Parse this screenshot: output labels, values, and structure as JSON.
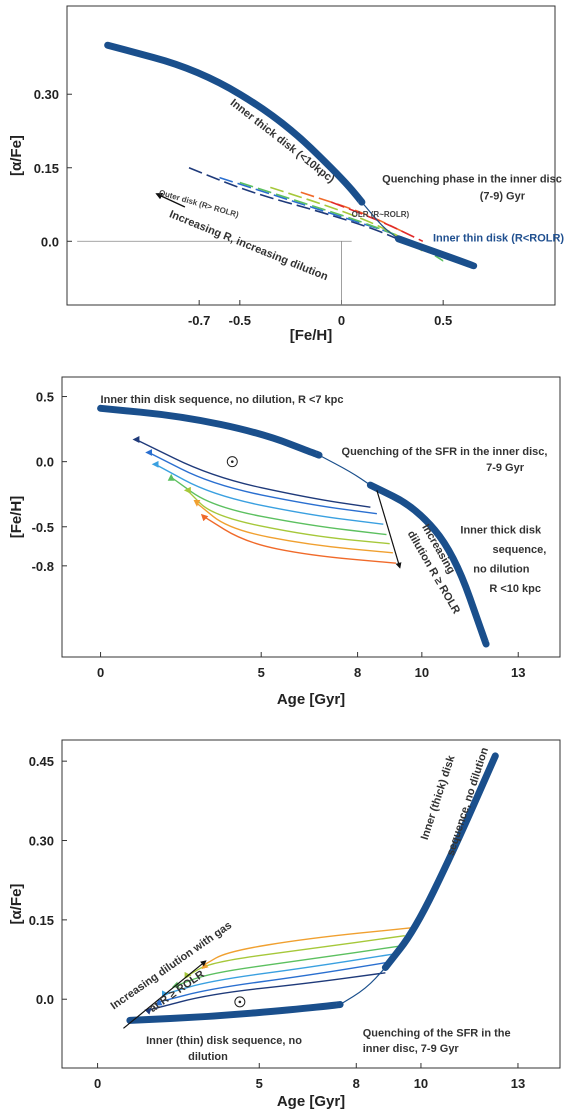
{
  "colors": {
    "thick": "#1a4f8c",
    "rainbow": [
      "#1f3a7a",
      "#2a6fd0",
      "#3aa0e0",
      "#5cc060",
      "#a6c83a",
      "#f0a030",
      "#f06a2a",
      "#e02a2a"
    ]
  },
  "chart_data": [
    {
      "type": "line",
      "xlabel": "[Fe/H]",
      "ylabel": "[α/Fe]",
      "x_ticks": [
        "-0.7",
        "-0.5",
        "0",
        "0.5"
      ],
      "y_ticks": [
        "0.30",
        "0.15",
        "0.0"
      ],
      "xlim": [
        -1.35,
        1.05
      ],
      "ylim": [
        -0.13,
        0.48
      ],
      "series": [
        {
          "name": "Inner thick disk (<10kpc)",
          "style": "thick",
          "x": [
            -1.15,
            -0.7,
            -0.3,
            0.0,
            0.1
          ],
          "y": [
            0.4,
            0.35,
            0.25,
            0.13,
            0.08
          ]
        },
        {
          "name": "Quenching phase in the inner disc (7-9) Gyr",
          "style": "thin",
          "x": [
            0.1,
            0.2,
            0.28
          ],
          "y": [
            0.08,
            0.03,
            0.005
          ]
        },
        {
          "name": "Inner thin disk (R<ROLR)",
          "style": "thick",
          "x": [
            0.28,
            0.45,
            0.65
          ],
          "y": [
            0.005,
            -0.02,
            -0.05
          ]
        }
      ],
      "rainbow_tracks": [
        {
          "x": [
            -0.75,
            -0.45,
            -0.1,
            0.2,
            0.4,
            0.65
          ],
          "y": [
            0.15,
            0.1,
            0.06,
            0.02,
            -0.02,
            -0.05
          ]
        },
        {
          "x": [
            -0.6,
            -0.3,
            0.0,
            0.3,
            0.55
          ],
          "y": [
            0.13,
            0.09,
            0.05,
            0.01,
            -0.04
          ]
        },
        {
          "x": [
            -0.5,
            -0.2,
            0.1,
            0.35,
            0.5
          ],
          "y": [
            0.12,
            0.08,
            0.04,
            0.0,
            -0.04
          ]
        },
        {
          "x": [
            -0.35,
            -0.05,
            0.2,
            0.4
          ],
          "y": [
            0.11,
            0.07,
            0.03,
            -0.02
          ]
        },
        {
          "x": [
            -0.2,
            0.1,
            0.3
          ],
          "y": [
            0.1,
            0.06,
            0.02
          ]
        },
        {
          "x": [
            -0.05,
            0.2,
            0.4
          ],
          "y": [
            0.08,
            0.04,
            0.0
          ]
        }
      ],
      "annotations": [
        {
          "text": "Inner thick disk (<10kpc)",
          "x": -0.55,
          "y": 0.28,
          "rot": 38
        },
        {
          "text": "Quenching phase in the inner disc",
          "x": 0.2,
          "y": 0.12,
          "rot": 0
        },
        {
          "text": "(7-9) Gyr",
          "x": 0.68,
          "y": 0.085,
          "rot": 0
        },
        {
          "text": "Inner thin disk (R<ROLR)",
          "x": 0.45,
          "y": 0.0,
          "rot": 0
        },
        {
          "text": "Increasing R, increasing dilution",
          "x": -0.85,
          "y": 0.05,
          "rot": 22
        },
        {
          "text": "Outer disk (R> ROLR)",
          "x": -0.9,
          "y": 0.095,
          "rot": 16
        },
        {
          "text": "OLR (R~ROLR)",
          "x": 0.05,
          "y": 0.05,
          "rot": 0
        }
      ]
    },
    {
      "type": "line",
      "xlabel": "Age [Gyr]",
      "ylabel": "[Fe/H]",
      "x_ticks": [
        "0",
        "5",
        "8",
        "10",
        "13"
      ],
      "y_ticks": [
        "0.5",
        "0.0",
        "-0.5",
        "-0.8"
      ],
      "xlim": [
        -1.2,
        14.3
      ],
      "ylim": [
        -1.5,
        0.65
      ],
      "series": [
        {
          "name": "Inner thin disk sequence, no dilution, R <7 kpc",
          "style": "thick",
          "x": [
            0.0,
            2.5,
            5.0,
            6.8
          ],
          "y": [
            0.41,
            0.35,
            0.22,
            0.05
          ]
        },
        {
          "name": "Quenching of the SFR in the inner disc, 7-9 Gyr",
          "style": "thin",
          "x": [
            6.8,
            7.8,
            8.4
          ],
          "y": [
            0.05,
            -0.08,
            -0.18
          ]
        },
        {
          "name": "Inner thick disk sequence, no dilution R <10 kpc",
          "style": "thick",
          "x": [
            8.4,
            9.8,
            11.0,
            12.0
          ],
          "y": [
            -0.18,
            -0.35,
            -0.7,
            -1.4
          ]
        }
      ],
      "rainbow_tracks": [
        {
          "x": [
            8.4,
            6.5,
            3.5,
            1.1
          ],
          "y": [
            -0.35,
            -0.28,
            -0.12,
            0.17
          ]
        },
        {
          "x": [
            8.6,
            6.5,
            3.5,
            1.5
          ],
          "y": [
            -0.4,
            -0.33,
            -0.18,
            0.07
          ]
        },
        {
          "x": [
            8.8,
            6.5,
            3.5,
            1.7
          ],
          "y": [
            -0.48,
            -0.41,
            -0.26,
            -0.02
          ]
        },
        {
          "x": [
            8.9,
            6.5,
            3.5,
            2.2
          ],
          "y": [
            -0.56,
            -0.49,
            -0.35,
            -0.12
          ]
        },
        {
          "x": [
            9.0,
            6.5,
            3.5,
            2.7
          ],
          "y": [
            -0.63,
            -0.57,
            -0.42,
            -0.22
          ]
        },
        {
          "x": [
            9.1,
            6.5,
            4.0,
            3.0
          ],
          "y": [
            -0.7,
            -0.64,
            -0.52,
            -0.32
          ]
        },
        {
          "x": [
            9.2,
            6.5,
            4.5,
            3.2
          ],
          "y": [
            -0.78,
            -0.72,
            -0.62,
            -0.42
          ]
        }
      ],
      "annotations": [
        {
          "text": "Inner thin disk sequence, no dilution, R <7 kpc",
          "x": 0.0,
          "y": 0.45,
          "rot": 0
        },
        {
          "text": "Quenching of the SFR in the inner disc,",
          "x": 7.5,
          "y": 0.05,
          "rot": 0
        },
        {
          "text": "7-9 Gyr",
          "x": 12.0,
          "y": -0.07,
          "rot": 0
        },
        {
          "text": "Inner thick disk",
          "x": 11.2,
          "y": -0.55,
          "rot": 0
        },
        {
          "text": "sequence,",
          "x": 12.2,
          "y": -0.7,
          "rot": 0
        },
        {
          "text": "no dilution",
          "x": 11.6,
          "y": -0.85,
          "rot": 0
        },
        {
          "text": "R <10 kpc",
          "x": 12.1,
          "y": -1.0,
          "rot": 0
        },
        {
          "text": "Increasing",
          "x": 10.0,
          "y": -0.5,
          "rot": 60
        },
        {
          "text": "dilution R ≥ ROLR",
          "x": 9.55,
          "y": -0.55,
          "rot": 60
        }
      ]
    },
    {
      "type": "line",
      "xlabel": "Age [Gyr]",
      "ylabel": "[α/Fe]",
      "x_ticks": [
        "0",
        "5",
        "8",
        "10",
        "13"
      ],
      "y_ticks": [
        "0.45",
        "0.30",
        "0.15",
        "0.0"
      ],
      "xlim": [
        -1.1,
        14.3
      ],
      "ylim": [
        -0.13,
        0.49
      ],
      "series": [
        {
          "name": "Inner (thin) disk sequence, no dilution",
          "style": "thick",
          "x": [
            1.0,
            3.5,
            6.0,
            7.5
          ],
          "y": [
            -0.04,
            -0.033,
            -0.02,
            -0.01
          ]
        },
        {
          "name": "Quenching of the SFR in the inner disc, 7-9 Gyr",
          "style": "thin",
          "x": [
            7.5,
            8.3,
            8.9
          ],
          "y": [
            -0.01,
            0.02,
            0.06
          ]
        },
        {
          "name": "Inner (thick) disk sequence, no dilution",
          "style": "thick",
          "x": [
            8.9,
            9.8,
            11.0,
            12.3
          ],
          "y": [
            0.06,
            0.13,
            0.28,
            0.46
          ]
        }
      ],
      "rainbow_tracks": [
        {
          "x": [
            8.9,
            6.5,
            3.5,
            1.6
          ],
          "y": [
            0.05,
            0.03,
            0.01,
            -0.02
          ]
        },
        {
          "x": [
            9.0,
            6.5,
            3.5,
            1.9
          ],
          "y": [
            0.07,
            0.045,
            0.02,
            -0.005
          ]
        },
        {
          "x": [
            9.1,
            6.5,
            3.5,
            2.1
          ],
          "y": [
            0.085,
            0.06,
            0.035,
            0.01
          ]
        },
        {
          "x": [
            9.3,
            6.5,
            3.5,
            2.4
          ],
          "y": [
            0.1,
            0.075,
            0.05,
            0.025
          ]
        },
        {
          "x": [
            9.5,
            6.5,
            3.5,
            2.8
          ],
          "y": [
            0.12,
            0.095,
            0.07,
            0.045
          ]
        },
        {
          "x": [
            9.7,
            6.5,
            4.0,
            3.3
          ],
          "y": [
            0.135,
            0.115,
            0.09,
            0.065
          ]
        }
      ],
      "annotations": [
        {
          "text": "Inner (thick) disk",
          "x": 10.2,
          "y": 0.3,
          "rot": -72
        },
        {
          "text": "sequence, no dilution",
          "x": 11.0,
          "y": 0.27,
          "rot": -72
        },
        {
          "text": "Increasing dilution with gas",
          "x": 0.5,
          "y": -0.02,
          "rot": -35
        },
        {
          "text": "at R ≥ ROLR",
          "x": 1.7,
          "y": -0.025,
          "rot": -35
        },
        {
          "text": "Quenching of the SFR in the",
          "x": 8.2,
          "y": -0.07,
          "rot": 0
        },
        {
          "text": "inner disc, 7-9 Gyr",
          "x": 8.2,
          "y": -0.1,
          "rot": 0
        },
        {
          "text": "Inner (thin) disk sequence, no",
          "x": 1.5,
          "y": -0.085,
          "rot": 0
        },
        {
          "text": "dilution",
          "x": 2.8,
          "y": -0.115,
          "rot": 0
        }
      ]
    }
  ]
}
